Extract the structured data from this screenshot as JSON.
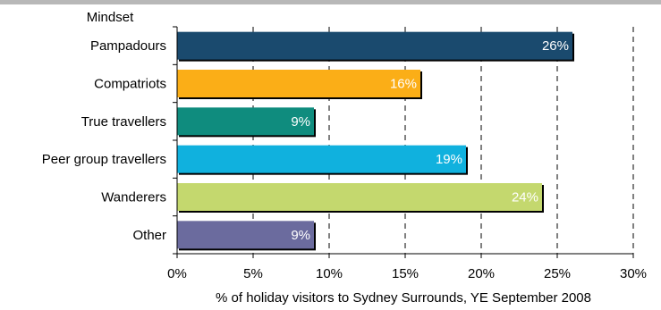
{
  "chart_data": {
    "type": "bar",
    "orientation": "horizontal",
    "category_axis_title": "Mindset",
    "xlabel": "% of holiday visitors to Sydney Surrounds, YE September 2008",
    "xlim": [
      0,
      30
    ],
    "x_ticks": [
      0,
      5,
      10,
      15,
      20,
      25,
      30
    ],
    "x_tick_labels": [
      "0%",
      "5%",
      "10%",
      "15%",
      "20%",
      "25%",
      "30%"
    ],
    "grid": "vertical dashed",
    "categories": [
      "Pampadours",
      "Compatriots",
      "True travellers",
      "Peer group travellers",
      "Wanderers",
      "Other"
    ],
    "values": [
      26,
      16,
      9,
      19,
      24,
      9
    ],
    "value_labels": [
      "26%",
      "16%",
      "9%",
      "19%",
      "24%",
      "9%"
    ],
    "colors": [
      "#1a4a6e",
      "#fbae17",
      "#0f8c7e",
      "#10b1de",
      "#c4d86e",
      "#6b6b9e"
    ]
  }
}
